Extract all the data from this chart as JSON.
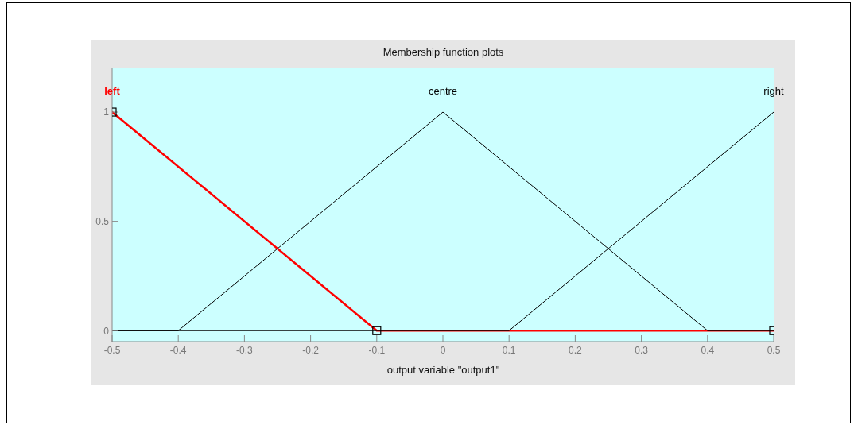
{
  "chart_data": {
    "type": "line",
    "title": "Membership function plots",
    "xlabel": "output variable \"output1\"",
    "series": [
      {
        "name": "left",
        "color": "#ff0000",
        "x": [
          -0.5,
          -0.1,
          0.5
        ],
        "values": [
          1,
          0,
          0
        ],
        "marker": "square"
      },
      {
        "name": "centre",
        "color": "#000000",
        "x": [
          -0.5,
          -0.4,
          0,
          0.4,
          0.5
        ],
        "values": [
          0,
          0,
          1,
          0,
          0
        ]
      },
      {
        "name": "right",
        "color": "#000000",
        "x": [
          -0.5,
          0.1,
          0.5
        ],
        "values": [
          0,
          0,
          1
        ]
      }
    ],
    "xlim": [
      -0.5,
      0.5
    ],
    "xticks": [
      -0.5,
      -0.4,
      -0.3,
      -0.2,
      -0.1,
      0,
      0.1,
      0.2,
      0.3,
      0.4,
      0.5
    ],
    "ylim": [
      -0.05,
      1.2
    ],
    "yticks": [
      0,
      0.5,
      1
    ],
    "grid": false,
    "legend": false
  }
}
